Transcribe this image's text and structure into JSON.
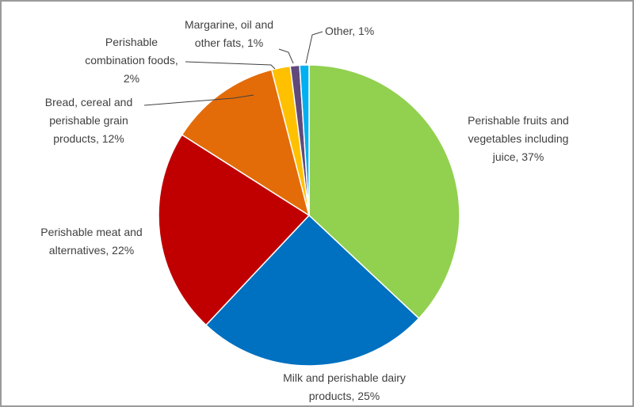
{
  "chart_data": {
    "type": "pie",
    "categories": [
      "Perishable fruits and vegetables including juice, 37%",
      "Milk and perishable dairy products, 25%",
      "Perishable meat and alternatives, 22%",
      "Bread, cereal and perishable grain products, 12%",
      "Perishable combination foods, 2%",
      "Margarine, oil and other fats, 1%",
      "Other, 1%"
    ],
    "values": [
      37,
      25,
      22,
      12,
      2,
      1,
      1
    ],
    "colors": [
      "#92d050",
      "#0070c0",
      "#c00000",
      "#e36c09",
      "#ffc000",
      "#604a7b",
      "#00b0f0"
    ]
  }
}
